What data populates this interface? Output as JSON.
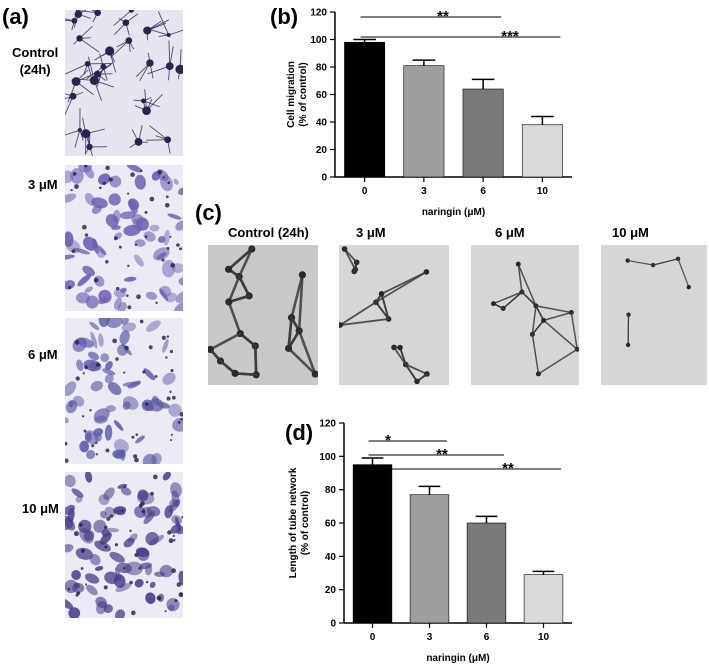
{
  "panels": {
    "a": {
      "letter": "(a)",
      "rows": [
        {
          "label_lines": [
            "Control",
            "(24h)"
          ],
          "stain": "#2a2350",
          "density": 26
        },
        {
          "label_lines": [
            "3 μM"
          ],
          "stain": "#6e5db4",
          "density": 70
        },
        {
          "label_lines": [
            "6 μM"
          ],
          "stain": "#5a5aa8",
          "density": 60
        },
        {
          "label_lines": [
            "10 μM"
          ],
          "stain": "#4a3a8a",
          "density": 80
        }
      ]
    },
    "b": {
      "letter": "(b)"
    },
    "c": {
      "letter": "(c)",
      "images": [
        {
          "label": "Control (24h)",
          "nodes": 16
        },
        {
          "label": "3 μM",
          "nodes": 14
        },
        {
          "label": "6 μM",
          "nodes": 10
        },
        {
          "label": "10 μM",
          "nodes": 6
        }
      ]
    },
    "d": {
      "letter": "(d)"
    }
  },
  "chart_data": [
    {
      "type": "bar",
      "panel": "b",
      "categories": [
        "0",
        "3",
        "6",
        "10"
      ],
      "values": [
        98,
        81,
        64,
        38
      ],
      "errors": [
        2,
        4,
        7,
        6
      ],
      "colors": [
        "#000000",
        "#9e9e9e",
        "#7a7a7a",
        "#d9d9d9"
      ],
      "xlabel": "naringin (μM)",
      "ylabel_lines": [
        "Cell migration",
        "(% of control)"
      ],
      "ylim": [
        0,
        120
      ],
      "yticks": [
        "0",
        "20",
        "40",
        "60",
        "80",
        "100",
        "120"
      ],
      "significance": [
        {
          "from": "0",
          "to": "6",
          "label": "**"
        },
        {
          "from": "0",
          "to": "10",
          "label": "***"
        }
      ]
    },
    {
      "type": "bar",
      "panel": "d",
      "categories": [
        "0",
        "3",
        "6",
        "10"
      ],
      "values": [
        95,
        77,
        60,
        29
      ],
      "errors": [
        4,
        5,
        4,
        2
      ],
      "colors": [
        "#000000",
        "#9e9e9e",
        "#7a7a7a",
        "#d9d9d9"
      ],
      "xlabel": "naringin (μM)",
      "ylabel_lines": [
        "Length of tube network",
        "(% of control)"
      ],
      "ylim": [
        0,
        120
      ],
      "yticks": [
        "0",
        "20",
        "40",
        "60",
        "80",
        "100",
        "120"
      ],
      "significance": [
        {
          "from": "0",
          "to": "3",
          "label": "*"
        },
        {
          "from": "0",
          "to": "6",
          "label": "**"
        },
        {
          "from": "0",
          "to": "10",
          "label": "**"
        }
      ]
    }
  ]
}
